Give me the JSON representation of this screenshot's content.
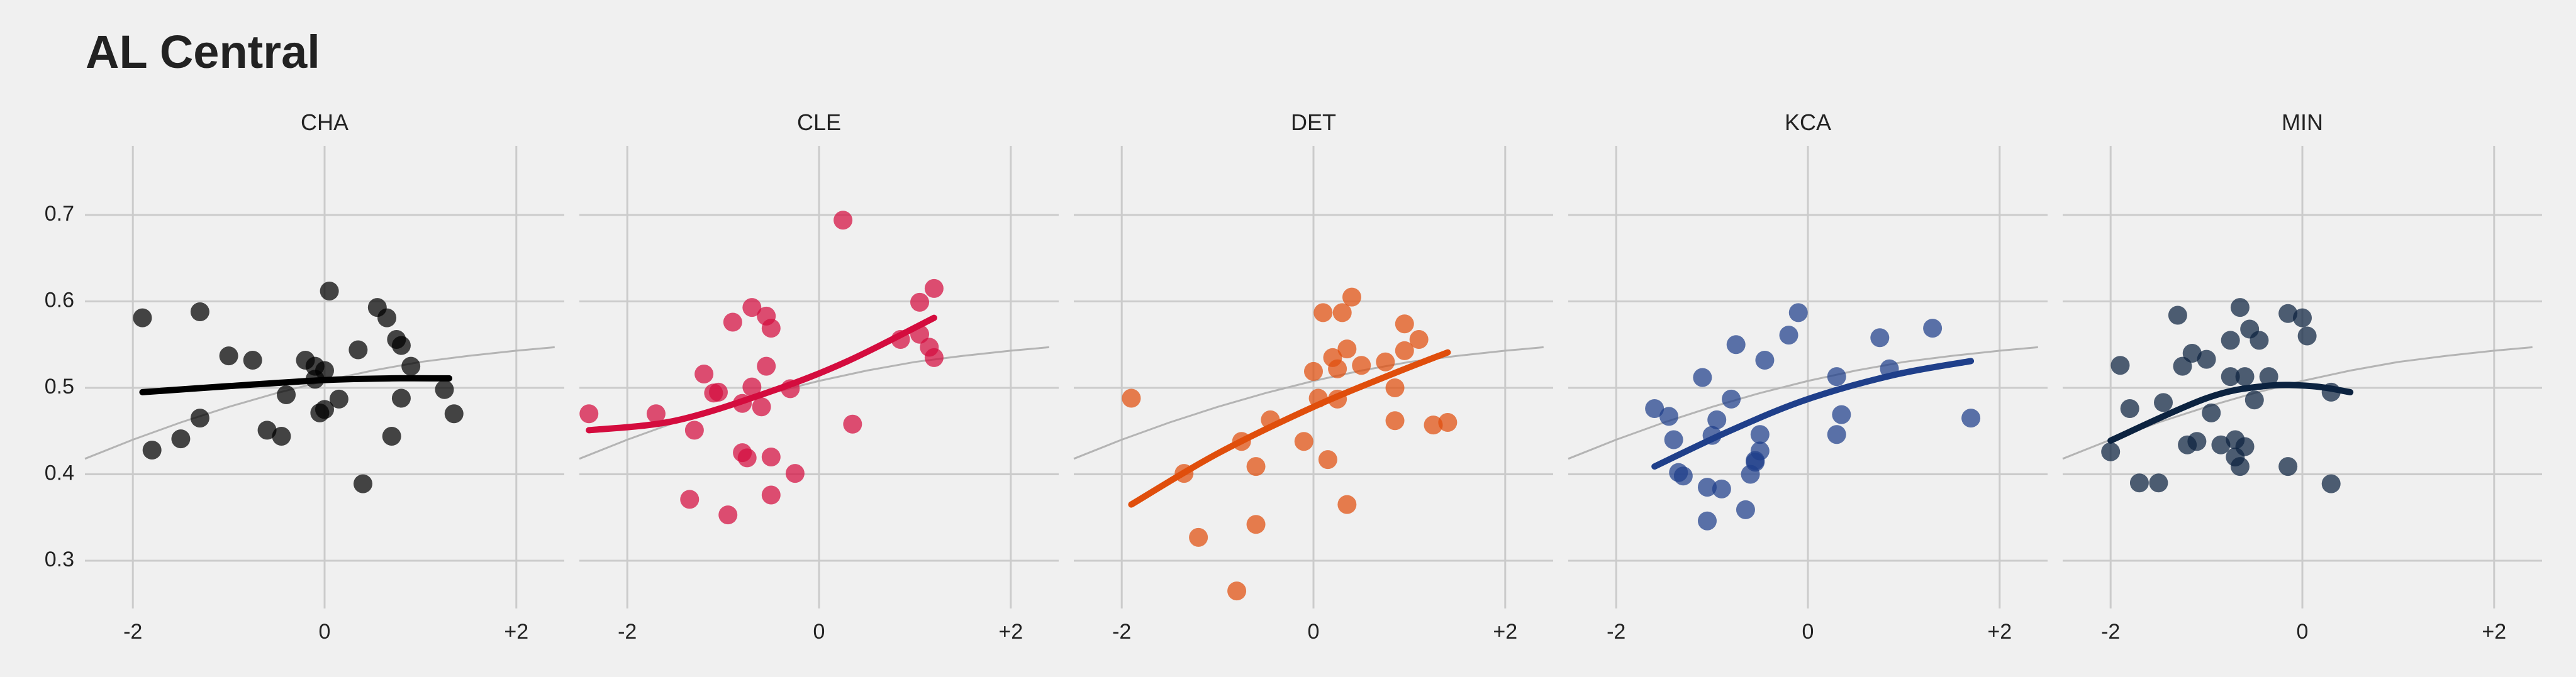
{
  "chart_data": {
    "type": "scatter",
    "title": "AL Central",
    "xlabel": "",
    "ylabel": "",
    "xlim": [
      -2.5,
      2.5
    ],
    "ylim": [
      0.22,
      0.78
    ],
    "x_ticks": [
      -2,
      0,
      2
    ],
    "x_tick_labels": [
      "-2",
      "0",
      "+2"
    ],
    "y_ticks": [
      0.3,
      0.4,
      0.5,
      0.6,
      0.7
    ],
    "y_tick_labels": [
      "0.3",
      "0.4",
      "0.5",
      "0.6",
      "0.7"
    ],
    "grid": true,
    "legend": "none",
    "reference_line_color": "#b4b4b4",
    "reference_line": {
      "x": [
        -2.5,
        -2.0,
        -1.5,
        -1.0,
        -0.5,
        0.0,
        0.5,
        1.0,
        1.5,
        2.0,
        2.4
      ],
      "y": [
        0.418,
        0.44,
        0.46,
        0.478,
        0.494,
        0.508,
        0.52,
        0.53,
        0.537,
        0.543,
        0.547
      ]
    },
    "panels": [
      {
        "label": "CHA",
        "color": "#000000",
        "trend": {
          "x": [
            -1.9,
            -1.0,
            0.0,
            0.7,
            1.3
          ],
          "y": [
            0.495,
            0.502,
            0.509,
            0.511,
            0.511
          ]
        },
        "points": [
          [
            -1.9,
            0.581
          ],
          [
            -1.8,
            0.428
          ],
          [
            -1.5,
            0.441
          ],
          [
            -1.3,
            0.465
          ],
          [
            -1.3,
            0.588
          ],
          [
            -1.0,
            0.537
          ],
          [
            -0.75,
            0.532
          ],
          [
            -0.6,
            0.451
          ],
          [
            -0.45,
            0.444
          ],
          [
            -0.4,
            0.492
          ],
          [
            -0.2,
            0.532
          ],
          [
            -0.1,
            0.51
          ],
          [
            -0.1,
            0.525
          ],
          [
            -0.05,
            0.471
          ],
          [
            0.0,
            0.52
          ],
          [
            0.0,
            0.475
          ],
          [
            0.05,
            0.612
          ],
          [
            0.15,
            0.487
          ],
          [
            0.35,
            0.544
          ],
          [
            0.4,
            0.389
          ],
          [
            0.55,
            0.593
          ],
          [
            0.65,
            0.581
          ],
          [
            0.7,
            0.444
          ],
          [
            0.75,
            0.556
          ],
          [
            0.8,
            0.549
          ],
          [
            0.8,
            0.488
          ],
          [
            0.9,
            0.525
          ],
          [
            1.25,
            0.498
          ],
          [
            1.35,
            0.47
          ]
        ]
      },
      {
        "label": "CLE",
        "color": "#d40c3e",
        "trend": {
          "x": [
            -2.4,
            -1.5,
            -0.5,
            0.3,
            1.2
          ],
          "y": [
            0.451,
            0.462,
            0.496,
            0.531,
            0.581
          ]
        },
        "points": [
          [
            -2.4,
            0.47
          ],
          [
            -1.7,
            0.47
          ],
          [
            -1.35,
            0.371
          ],
          [
            -1.3,
            0.451
          ],
          [
            -1.2,
            0.516
          ],
          [
            -1.1,
            0.494
          ],
          [
            -1.05,
            0.495
          ],
          [
            -0.95,
            0.353
          ],
          [
            -0.9,
            0.576
          ],
          [
            -0.8,
            0.425
          ],
          [
            -0.8,
            0.482
          ],
          [
            -0.75,
            0.419
          ],
          [
            -0.7,
            0.501
          ],
          [
            -0.7,
            0.593
          ],
          [
            -0.6,
            0.478
          ],
          [
            -0.55,
            0.525
          ],
          [
            -0.55,
            0.583
          ],
          [
            -0.5,
            0.569
          ],
          [
            -0.5,
            0.376
          ],
          [
            -0.5,
            0.42
          ],
          [
            -0.3,
            0.499
          ],
          [
            -0.25,
            0.401
          ],
          [
            0.25,
            0.694
          ],
          [
            0.35,
            0.458
          ],
          [
            0.85,
            0.556
          ],
          [
            1.05,
            0.562
          ],
          [
            1.05,
            0.599
          ],
          [
            1.15,
            0.547
          ],
          [
            1.2,
            0.615
          ],
          [
            1.2,
            0.535
          ]
        ]
      },
      {
        "label": "DET",
        "color": "#e04e0c",
        "trend": {
          "x": [
            -1.9,
            -1.0,
            0.0,
            0.8,
            1.4
          ],
          "y": [
            0.365,
            0.424,
            0.478,
            0.515,
            0.541
          ]
        },
        "points": [
          [
            -1.9,
            0.488
          ],
          [
            -1.35,
            0.401
          ],
          [
            -1.2,
            0.327
          ],
          [
            -0.8,
            0.265
          ],
          [
            -0.75,
            0.438
          ],
          [
            -0.6,
            0.409
          ],
          [
            -0.6,
            0.342
          ],
          [
            -0.45,
            0.463
          ],
          [
            -0.1,
            0.438
          ],
          [
            0.0,
            0.519
          ],
          [
            0.05,
            0.488
          ],
          [
            0.1,
            0.587
          ],
          [
            0.15,
            0.417
          ],
          [
            0.2,
            0.535
          ],
          [
            0.25,
            0.522
          ],
          [
            0.25,
            0.487
          ],
          [
            0.3,
            0.587
          ],
          [
            0.35,
            0.545
          ],
          [
            0.35,
            0.365
          ],
          [
            0.4,
            0.605
          ],
          [
            0.5,
            0.526
          ],
          [
            0.75,
            0.53
          ],
          [
            0.85,
            0.5
          ],
          [
            0.85,
            0.462
          ],
          [
            0.95,
            0.574
          ],
          [
            0.95,
            0.543
          ],
          [
            1.1,
            0.556
          ],
          [
            1.25,
            0.457
          ],
          [
            1.4,
            0.46
          ]
        ]
      },
      {
        "label": "KCA",
        "color": "#1f3f8a",
        "trend": {
          "x": [
            -1.6,
            -0.8,
            0.0,
            0.9,
            1.7
          ],
          "y": [
            0.409,
            0.451,
            0.487,
            0.515,
            0.531
          ]
        },
        "points": [
          [
            -1.6,
            0.476
          ],
          [
            -1.45,
            0.467
          ],
          [
            -1.4,
            0.44
          ],
          [
            -1.35,
            0.402
          ],
          [
            -1.3,
            0.398
          ],
          [
            -1.1,
            0.512
          ],
          [
            -1.05,
            0.385
          ],
          [
            -1.05,
            0.346
          ],
          [
            -1.0,
            0.445
          ],
          [
            -0.95,
            0.463
          ],
          [
            -0.9,
            0.383
          ],
          [
            -0.8,
            0.487
          ],
          [
            -0.75,
            0.55
          ],
          [
            -0.65,
            0.359
          ],
          [
            -0.6,
            0.4
          ],
          [
            -0.55,
            0.416
          ],
          [
            -0.55,
            0.414
          ],
          [
            -0.5,
            0.427
          ],
          [
            -0.5,
            0.446
          ],
          [
            -0.45,
            0.532
          ],
          [
            -0.2,
            0.561
          ],
          [
            -0.1,
            0.587
          ],
          [
            0.3,
            0.513
          ],
          [
            0.3,
            0.446
          ],
          [
            0.35,
            0.469
          ],
          [
            0.75,
            0.558
          ],
          [
            0.85,
            0.522
          ],
          [
            1.3,
            0.569
          ],
          [
            1.7,
            0.465
          ]
        ]
      },
      {
        "label": "MIN",
        "color": "#0c2340",
        "trend": {
          "x": [
            -2.0,
            -1.0,
            -0.4,
            0.1,
            0.5
          ],
          "y": [
            0.439,
            0.488,
            0.502,
            0.502,
            0.495
          ]
        },
        "points": [
          [
            -2.0,
            0.426
          ],
          [
            -1.9,
            0.526
          ],
          [
            -1.8,
            0.476
          ],
          [
            -1.7,
            0.39
          ],
          [
            -1.5,
            0.39
          ],
          [
            -1.45,
            0.483
          ],
          [
            -1.3,
            0.584
          ],
          [
            -1.25,
            0.525
          ],
          [
            -1.2,
            0.434
          ],
          [
            -1.15,
            0.54
          ],
          [
            -1.1,
            0.438
          ],
          [
            -1.0,
            0.533
          ],
          [
            -0.95,
            0.471
          ],
          [
            -0.85,
            0.434
          ],
          [
            -0.75,
            0.513
          ],
          [
            -0.75,
            0.555
          ],
          [
            -0.7,
            0.42
          ],
          [
            -0.7,
            0.44
          ],
          [
            -0.65,
            0.593
          ],
          [
            -0.65,
            0.409
          ],
          [
            -0.6,
            0.432
          ],
          [
            -0.6,
            0.513
          ],
          [
            -0.55,
            0.568
          ],
          [
            -0.5,
            0.486
          ],
          [
            -0.45,
            0.555
          ],
          [
            -0.35,
            0.513
          ],
          [
            -0.15,
            0.586
          ],
          [
            -0.15,
            0.409
          ],
          [
            0.0,
            0.581
          ],
          [
            0.05,
            0.56
          ],
          [
            0.3,
            0.495
          ],
          [
            0.3,
            0.389
          ]
        ]
      }
    ]
  }
}
